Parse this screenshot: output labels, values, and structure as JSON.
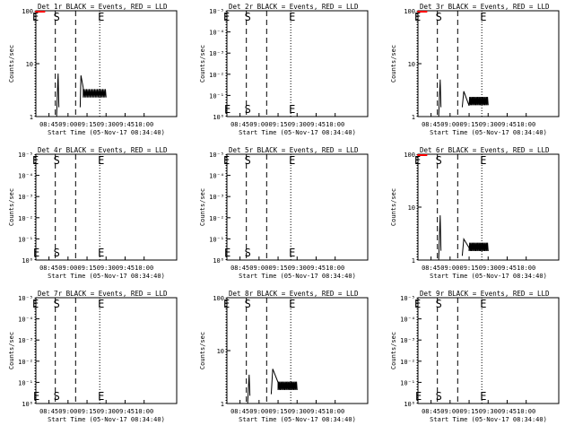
{
  "colors": {
    "events": "#000000",
    "lld": "#ff0000",
    "background": "#ffffff"
  },
  "chart_data": [
    {
      "type": "line",
      "title": "Det 1r BLACK = Events, RED = LLD",
      "xlabel": "Start Time (05-Nov-17 08:34:40)",
      "ylabel": "Counts/sec",
      "xticks": [
        "08:45",
        "09:00",
        "09:15",
        "09:30",
        "09:45",
        "10:00"
      ],
      "scale": "linear",
      "yticks": [
        "1",
        "10",
        "100"
      ],
      "ylim": [
        1,
        100
      ],
      "markers": [
        {
          "label": "E",
          "kind": "dotted",
          "x": "08:34"
        },
        {
          "label": "S",
          "kind": "dashed",
          "x": "08:50"
        },
        {
          "label": "",
          "kind": "dashed",
          "x": "09:06"
        },
        {
          "label": "E",
          "kind": "dotted",
          "x": "09:25"
        }
      ],
      "events": [
        [
          8.85,
          1
        ],
        [
          8.87,
          6.5
        ],
        [
          8.88,
          1.5
        ],
        [
          9.16,
          1.5
        ],
        [
          9.17,
          6
        ],
        [
          9.2,
          3.5
        ],
        [
          9.3,
          2.2
        ],
        [
          9.5,
          2.8
        ]
      ],
      "lld": [
        [
          8.57,
          100
        ],
        [
          8.7,
          100
        ]
      ]
    },
    {
      "type": "line",
      "title": "Det 2r BLACK = Events, RED = LLD",
      "xlabel": "Start Time (05-Nov-17 08:34:40)",
      "ylabel": "Counts/sec",
      "xticks": [
        "08:45",
        "09:00",
        "09:15",
        "09:30",
        "09:45",
        "10:00"
      ],
      "scale": "log",
      "yticks": [
        "10⁰",
        "10⁻¹",
        "10⁻²",
        "10⁻³",
        "10⁻⁴",
        "10⁻⁵"
      ],
      "ylim": [
        0,
        5
      ],
      "markers": [
        {
          "label": "E",
          "kind": "dotted",
          "x": "08:34"
        },
        {
          "label": "S",
          "kind": "dashed",
          "x": "08:50"
        },
        {
          "label": "",
          "kind": "dashed",
          "x": "09:06"
        },
        {
          "label": "E",
          "kind": "dotted",
          "x": "09:25"
        }
      ],
      "events": [],
      "lld": []
    },
    {
      "type": "line",
      "title": "Det 3r BLACK = Events, RED = LLD",
      "xlabel": "Start Time (05-Nov-17 08:34:40)",
      "ylabel": "Counts/sec",
      "xticks": [
        "08:45",
        "09:00",
        "09:15",
        "09:30",
        "09:45",
        "10:00"
      ],
      "scale": "linear",
      "yticks": [
        "1",
        "10",
        "100"
      ],
      "ylim": [
        1,
        100
      ],
      "markers": [
        {
          "label": "E",
          "kind": "dotted",
          "x": "08:34"
        },
        {
          "label": "S",
          "kind": "dashed",
          "x": "08:50"
        },
        {
          "label": "",
          "kind": "dashed",
          "x": "09:06"
        },
        {
          "label": "E",
          "kind": "dotted",
          "x": "09:25"
        }
      ],
      "events": [
        [
          8.85,
          1
        ],
        [
          8.87,
          5
        ],
        [
          8.88,
          1.5
        ],
        [
          9.16,
          1.5
        ],
        [
          9.18,
          3
        ],
        [
          9.25,
          1.6
        ],
        [
          9.5,
          2
        ]
      ],
      "lld": [
        [
          8.57,
          100
        ],
        [
          8.7,
          100
        ]
      ]
    },
    {
      "type": "line",
      "title": "Det 4r BLACK = Events, RED = LLD",
      "xlabel": "Start Time (05-Nov-17 08:34:40)",
      "ylabel": "Counts/sec",
      "xticks": [
        "08:45",
        "09:00",
        "09:15",
        "09:30",
        "09:45",
        "10:00"
      ],
      "scale": "log",
      "yticks": [
        "10⁰",
        "10⁻¹",
        "10⁻²",
        "10⁻³",
        "10⁻⁴",
        "10⁻⁵"
      ],
      "ylim": [
        0,
        5
      ],
      "markers": [
        {
          "label": "E",
          "kind": "dotted",
          "x": "08:34"
        },
        {
          "label": "S",
          "kind": "dashed",
          "x": "08:50"
        },
        {
          "label": "",
          "kind": "dashed",
          "x": "09:06"
        },
        {
          "label": "E",
          "kind": "dotted",
          "x": "09:25"
        }
      ],
      "events": [],
      "lld": []
    },
    {
      "type": "line",
      "title": "Det 5r BLACK = Events, RED = LLD",
      "xlabel": "Start Time (05-Nov-17 08:34:40)",
      "ylabel": "Counts/sec",
      "xticks": [
        "08:45",
        "09:00",
        "09:15",
        "09:30",
        "09:45",
        "10:00"
      ],
      "scale": "log",
      "yticks": [
        "10⁰",
        "10⁻¹",
        "10⁻²",
        "10⁻³",
        "10⁻⁴",
        "10⁻⁵"
      ],
      "ylim": [
        0,
        5
      ],
      "markers": [
        {
          "label": "E",
          "kind": "dotted",
          "x": "08:34"
        },
        {
          "label": "S",
          "kind": "dashed",
          "x": "08:50"
        },
        {
          "label": "",
          "kind": "dashed",
          "x": "09:06"
        },
        {
          "label": "E",
          "kind": "dotted",
          "x": "09:25"
        }
      ],
      "events": [],
      "lld": []
    },
    {
      "type": "line",
      "title": "Det 6r BLACK = Events, RED = LLD",
      "xlabel": "Start Time (05-Nov-17 08:34:40)",
      "ylabel": "Counts/sec",
      "xticks": [
        "08:45",
        "09:00",
        "09:15",
        "09:30",
        "09:45",
        "10:00"
      ],
      "scale": "linear",
      "yticks": [
        "1",
        "10",
        "100"
      ],
      "ylim": [
        1,
        100
      ],
      "markers": [
        {
          "label": "E",
          "kind": "dotted",
          "x": "08:34"
        },
        {
          "label": "S",
          "kind": "dashed",
          "x": "08:50"
        },
        {
          "label": "",
          "kind": "dashed",
          "x": "09:06"
        },
        {
          "label": "E",
          "kind": "dotted",
          "x": "09:25"
        }
      ],
      "events": [
        [
          8.85,
          1
        ],
        [
          8.87,
          7
        ],
        [
          8.88,
          1.5
        ],
        [
          9.16,
          1.2
        ],
        [
          9.18,
          2.5
        ],
        [
          9.25,
          1.7
        ],
        [
          9.5,
          1.8
        ]
      ],
      "lld": [
        [
          8.57,
          100
        ],
        [
          8.7,
          100
        ]
      ]
    },
    {
      "type": "line",
      "title": "Det 7r BLACK = Events, RED = LLD",
      "xlabel": "Start Time (05-Nov-17 08:34:40)",
      "ylabel": "Counts/sec",
      "xticks": [
        "08:45",
        "09:00",
        "09:15",
        "09:30",
        "09:45",
        "10:00"
      ],
      "scale": "log",
      "yticks": [
        "10⁰",
        "10⁻¹",
        "10⁻²",
        "10⁻³",
        "10⁻⁴",
        "10⁻⁵"
      ],
      "ylim": [
        0,
        5
      ],
      "markers": [
        {
          "label": "E",
          "kind": "dotted",
          "x": "08:34"
        },
        {
          "label": "S",
          "kind": "dashed",
          "x": "08:50"
        },
        {
          "label": "",
          "kind": "dashed",
          "x": "09:06"
        },
        {
          "label": "E",
          "kind": "dotted",
          "x": "09:25"
        }
      ],
      "events": [],
      "lld": []
    },
    {
      "type": "line",
      "title": "Det 8r BLACK = Events, RED = LLD",
      "xlabel": "Start Time (05-Nov-17 08:34:40)",
      "ylabel": "Counts/sec",
      "xticks": [
        "08:45",
        "09:00",
        "09:15",
        "09:30",
        "09:45",
        "10:00"
      ],
      "scale": "linear",
      "yticks": [
        "1",
        "10",
        "100"
      ],
      "ylim": [
        1,
        100
      ],
      "markers": [
        {
          "label": "E",
          "kind": "dotted",
          "x": "08:34"
        },
        {
          "label": "S",
          "kind": "dashed",
          "x": "08:50"
        },
        {
          "label": "",
          "kind": "dashed",
          "x": "09:06"
        },
        {
          "label": "E",
          "kind": "dotted",
          "x": "09:25"
        }
      ],
      "events": [
        [
          8.85,
          1
        ],
        [
          8.87,
          3.5
        ],
        [
          8.88,
          1.4
        ],
        [
          9.16,
          1.5
        ],
        [
          9.18,
          4.5
        ],
        [
          9.25,
          2.5
        ],
        [
          9.5,
          2.2
        ]
      ],
      "lld": []
    },
    {
      "type": "line",
      "title": "Det 9r BLACK = Events, RED = LLD",
      "xlabel": "Start Time (05-Nov-17 08:34:40)",
      "ylabel": "Counts/sec",
      "xticks": [
        "08:45",
        "09:00",
        "09:15",
        "09:30",
        "09:45",
        "10:00"
      ],
      "scale": "log",
      "yticks": [
        "10⁰",
        "10⁻¹",
        "10⁻²",
        "10⁻³",
        "10⁻⁴",
        "10⁻⁵"
      ],
      "ylim": [
        0,
        5
      ],
      "markers": [
        {
          "label": "E",
          "kind": "dotted",
          "x": "08:34"
        },
        {
          "label": "S",
          "kind": "dashed",
          "x": "08:50"
        },
        {
          "label": "",
          "kind": "dashed",
          "x": "09:06"
        },
        {
          "label": "E",
          "kind": "dotted",
          "x": "09:25"
        }
      ],
      "events": [],
      "lld": []
    }
  ]
}
